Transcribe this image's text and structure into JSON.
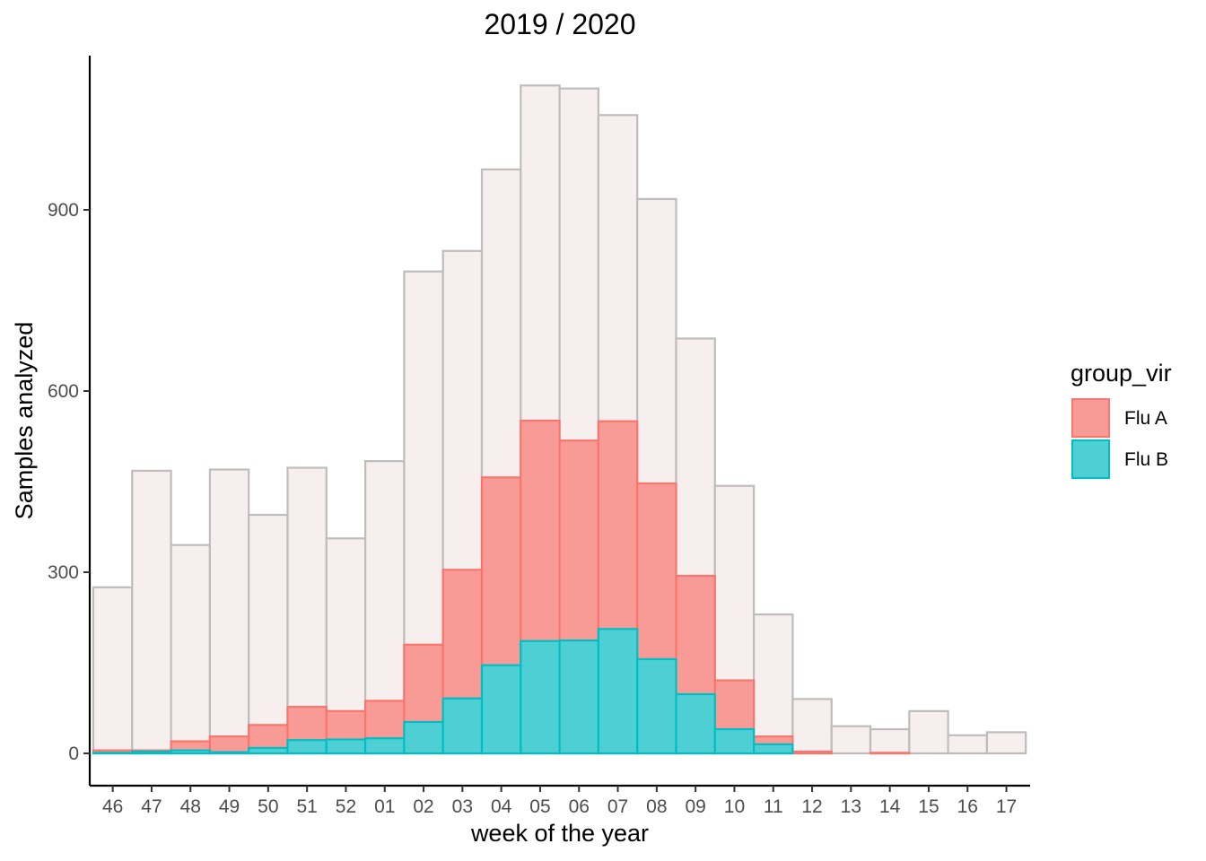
{
  "chart_data": {
    "type": "bar",
    "title": "2019 / 2020",
    "xlabel": "week of the year",
    "ylabel": "Samples analyzed",
    "categories": [
      "46",
      "47",
      "48",
      "49",
      "50",
      "51",
      "52",
      "01",
      "02",
      "03",
      "04",
      "05",
      "06",
      "07",
      "08",
      "09",
      "10",
      "11",
      "12",
      "13",
      "14",
      "15",
      "16",
      "17"
    ],
    "ylim": [
      -55,
      1150
    ],
    "yticks": [
      0,
      300,
      600,
      900
    ],
    "grid": false,
    "legend": {
      "title": "group_vir",
      "position": "right",
      "entries": [
        {
          "label": "Flu A",
          "fill": "#f8766d"
        },
        {
          "label": "Flu B",
          "fill": "#00bfc4"
        }
      ]
    },
    "series": [
      {
        "values": [
          275,
          468,
          345,
          470,
          395,
          473,
          356,
          484,
          798,
          832,
          967,
          1106,
          1101,
          1057,
          918,
          687,
          443,
          230,
          90,
          45,
          40,
          70,
          30,
          35
        ]
      },
      {
        "name": "Flu A",
        "values": [
          5,
          5,
          20,
          28,
          47,
          77,
          70,
          87,
          180,
          304,
          457,
          551,
          518,
          550,
          447,
          294,
          121,
          28,
          3,
          0,
          1,
          0,
          0,
          0
        ]
      },
      {
        "name": "Flu B",
        "values": [
          1,
          3,
          5,
          2,
          9,
          22,
          23,
          25,
          52,
          91,
          146,
          186,
          187,
          206,
          156,
          98,
          40,
          15,
          0,
          0,
          0,
          0,
          0,
          0
        ]
      }
    ],
    "colors": {
      "samples_fill": "#f7eeee",
      "samples_stroke": "#bdbdbd",
      "flu_a_fill": "#f89b96",
      "flu_a_stroke": "#f8766d",
      "flu_b_fill": "#4ecfd3",
      "flu_b_stroke": "#00bfc4"
    }
  }
}
